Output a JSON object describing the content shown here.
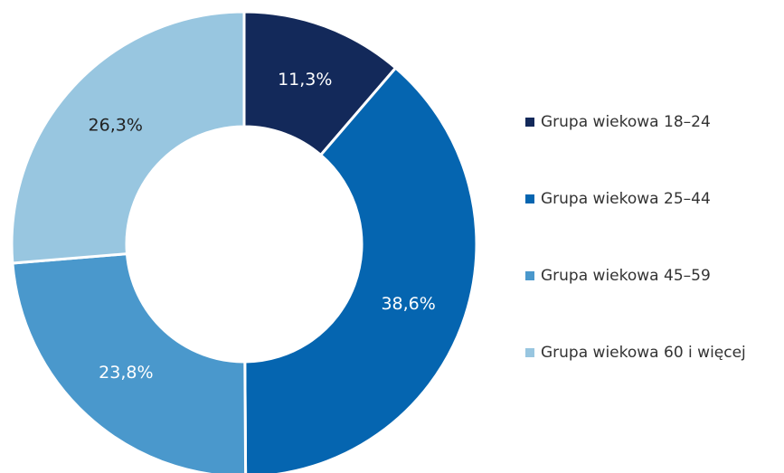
{
  "chart_data": {
    "type": "donut",
    "categories": [
      "Grupa wiekowa 18–24",
      "Grupa wiekowa 25–44",
      "Grupa wiekowa 45–59",
      "Grupa wiekowa 60 i więcej"
    ],
    "values": [
      11.3,
      38.6,
      23.8,
      26.3
    ],
    "value_labels": [
      "11,3%",
      "38,6%",
      "23,8%",
      "26,3%"
    ],
    "colors": [
      "#13295a",
      "#0565b0",
      "#4a98cc",
      "#98c6e0"
    ],
    "legend": "right"
  }
}
